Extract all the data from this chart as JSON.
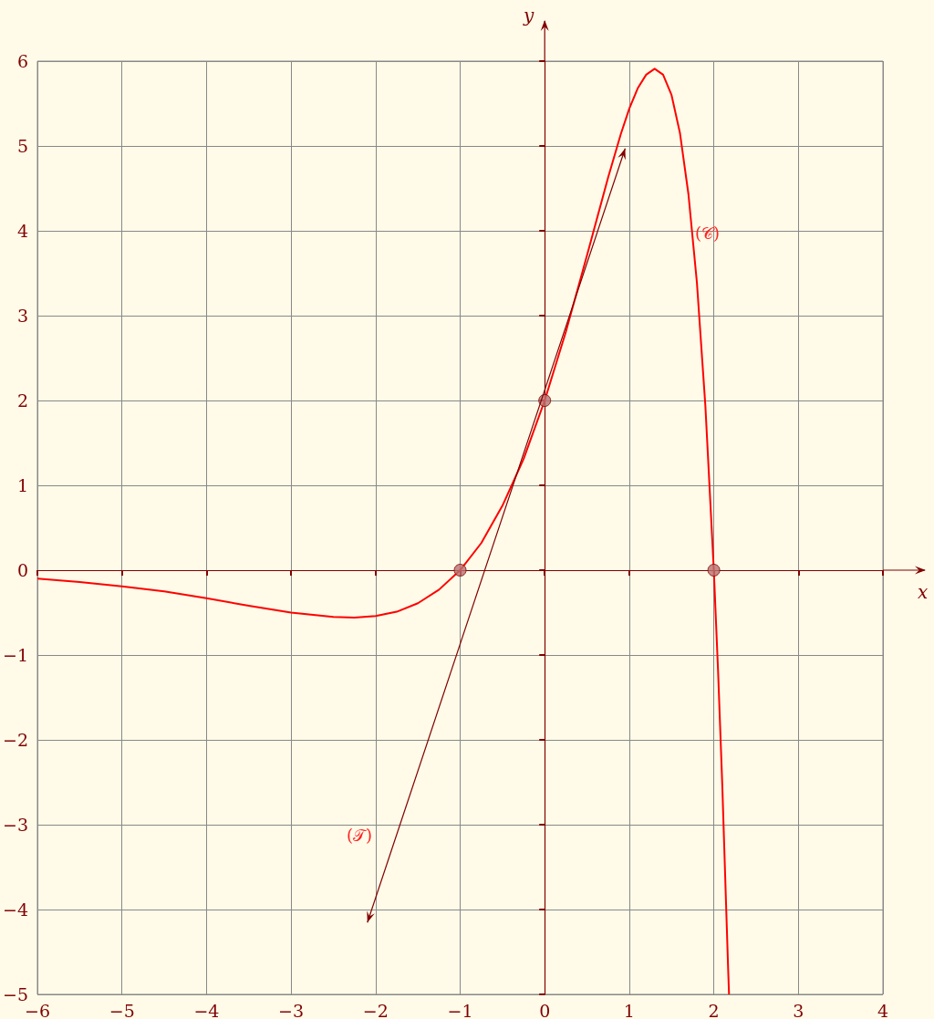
{
  "chart_data": {
    "type": "line",
    "xlabel": "x",
    "ylabel": "y",
    "xlim": [
      -6,
      4
    ],
    "ylim": [
      -5,
      6
    ],
    "xticks": [
      -6,
      -5,
      -4,
      -3,
      -2,
      -1,
      0,
      1,
      2,
      3,
      4
    ],
    "yticks": [
      -5,
      -4,
      -3,
      -2,
      -1,
      0,
      1,
      2,
      3,
      4,
      5,
      6
    ],
    "grid": true,
    "marker": "none",
    "series": [
      {
        "color": "#ff0000",
        "x": [
          -6,
          -5.5,
          -5,
          -4.5,
          -4,
          -3.5,
          -3,
          -2.5,
          -2.25,
          -2,
          -1.75,
          -1.5,
          -1.25,
          -1,
          -0.75,
          -0.5,
          -0.25,
          0,
          0.25,
          0.5,
          0.75,
          0.9,
          1,
          1.1,
          1.2,
          1.3,
          1.4,
          1.5,
          1.6,
          1.7,
          1.8,
          1.9,
          2,
          2.05,
          2.1,
          2.17,
          2.18
        ],
        "values": [
          -0.1,
          -0.14,
          -0.19,
          -0.25,
          -0.33,
          -0.42,
          -0.5,
          -0.55,
          -0.56,
          -0.54,
          -0.49,
          -0.39,
          -0.23,
          0,
          0.32,
          0.76,
          1.31,
          2,
          2.81,
          3.71,
          4.63,
          5.14,
          5.44,
          5.68,
          5.84,
          5.91,
          5.84,
          5.6,
          5.15,
          4.43,
          3.39,
          1.94,
          0,
          -1.18,
          -2.53,
          -4.72,
          -5
        ]
      },
      {
        "type": "scatter",
        "color": "#b87070",
        "marker": "circle",
        "x": [
          -1,
          0,
          2
        ],
        "values": [
          0,
          2,
          0
        ]
      }
    ],
    "annotations": [
      "(𝒞)",
      "(𝒯)"
    ]
  }
}
